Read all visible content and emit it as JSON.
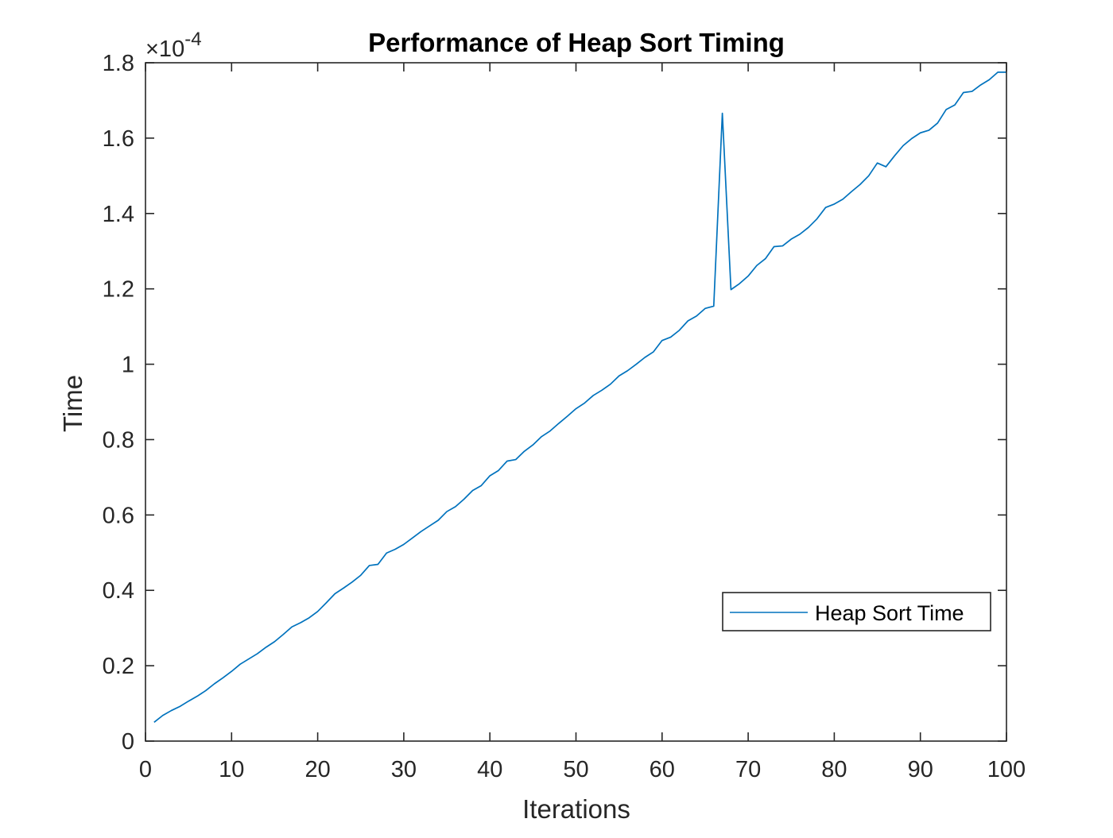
{
  "chart_data": {
    "type": "line",
    "title": "Performance of Heap Sort Timing",
    "xlabel": "Iterations",
    "ylabel": "Time",
    "y_exponent_prefix": "×10",
    "y_exponent_power": "-4",
    "y_scale": 0.0001,
    "xlim": [
      0,
      100
    ],
    "ylim": [
      0,
      1.8
    ],
    "x_ticks": [
      0,
      10,
      20,
      30,
      40,
      50,
      60,
      70,
      80,
      90,
      100
    ],
    "x_tick_labels": [
      "0",
      "10",
      "20",
      "30",
      "40",
      "50",
      "60",
      "70",
      "80",
      "90",
      "100"
    ],
    "y_ticks": [
      0,
      0.2,
      0.4,
      0.6,
      0.8,
      1.0,
      1.2,
      1.4,
      1.6,
      1.8
    ],
    "y_tick_labels": [
      "0",
      "0.2",
      "0.4",
      "0.6",
      "0.8",
      "1",
      "1.2",
      "1.4",
      "1.6",
      "1.8"
    ],
    "grid": false,
    "legend_position": "lower-right",
    "series": [
      {
        "name": "Heap Sort Time",
        "color": "#0072BD",
        "x": [
          1,
          2,
          3,
          4,
          5,
          6,
          7,
          8,
          9,
          10,
          11,
          12,
          13,
          14,
          15,
          16,
          17,
          18,
          19,
          20,
          21,
          22,
          23,
          24,
          25,
          26,
          27,
          28,
          29,
          30,
          31,
          32,
          33,
          34,
          35,
          36,
          37,
          38,
          39,
          40,
          41,
          42,
          43,
          44,
          45,
          46,
          47,
          48,
          49,
          50,
          51,
          52,
          53,
          54,
          55,
          56,
          57,
          58,
          59,
          60,
          61,
          62,
          63,
          64,
          65,
          66,
          67,
          68,
          69,
          70,
          71,
          72,
          73,
          74,
          75,
          76,
          77,
          78,
          79,
          80,
          81,
          82,
          83,
          84,
          85,
          86,
          87,
          88,
          89,
          90,
          91,
          92,
          93,
          94,
          95,
          96,
          97,
          98,
          99,
          100
        ],
        "values": [
          0.05,
          0.068,
          0.081,
          0.092,
          0.106,
          0.119,
          0.134,
          0.152,
          0.168,
          0.185,
          0.204,
          0.218,
          0.232,
          0.249,
          0.264,
          0.283,
          0.303,
          0.314,
          0.327,
          0.344,
          0.367,
          0.391,
          0.406,
          0.422,
          0.44,
          0.466,
          0.469,
          0.499,
          0.509,
          0.522,
          0.539,
          0.556,
          0.571,
          0.586,
          0.609,
          0.622,
          0.642,
          0.665,
          0.678,
          0.704,
          0.718,
          0.743,
          0.747,
          0.769,
          0.786,
          0.808,
          0.823,
          0.843,
          0.862,
          0.882,
          0.897,
          0.917,
          0.931,
          0.947,
          0.969,
          0.983,
          1.0,
          1.018,
          1.033,
          1.063,
          1.072,
          1.09,
          1.115,
          1.128,
          1.148,
          1.154,
          1.666,
          1.198,
          1.214,
          1.234,
          1.262,
          1.28,
          1.312,
          1.314,
          1.332,
          1.345,
          1.363,
          1.386,
          1.416,
          1.425,
          1.438,
          1.458,
          1.477,
          1.5,
          1.534,
          1.524,
          1.553,
          1.58,
          1.599,
          1.614,
          1.621,
          1.64,
          1.676,
          1.688,
          1.721,
          1.724,
          1.741,
          1.755,
          1.775,
          1.775
        ]
      }
    ]
  }
}
